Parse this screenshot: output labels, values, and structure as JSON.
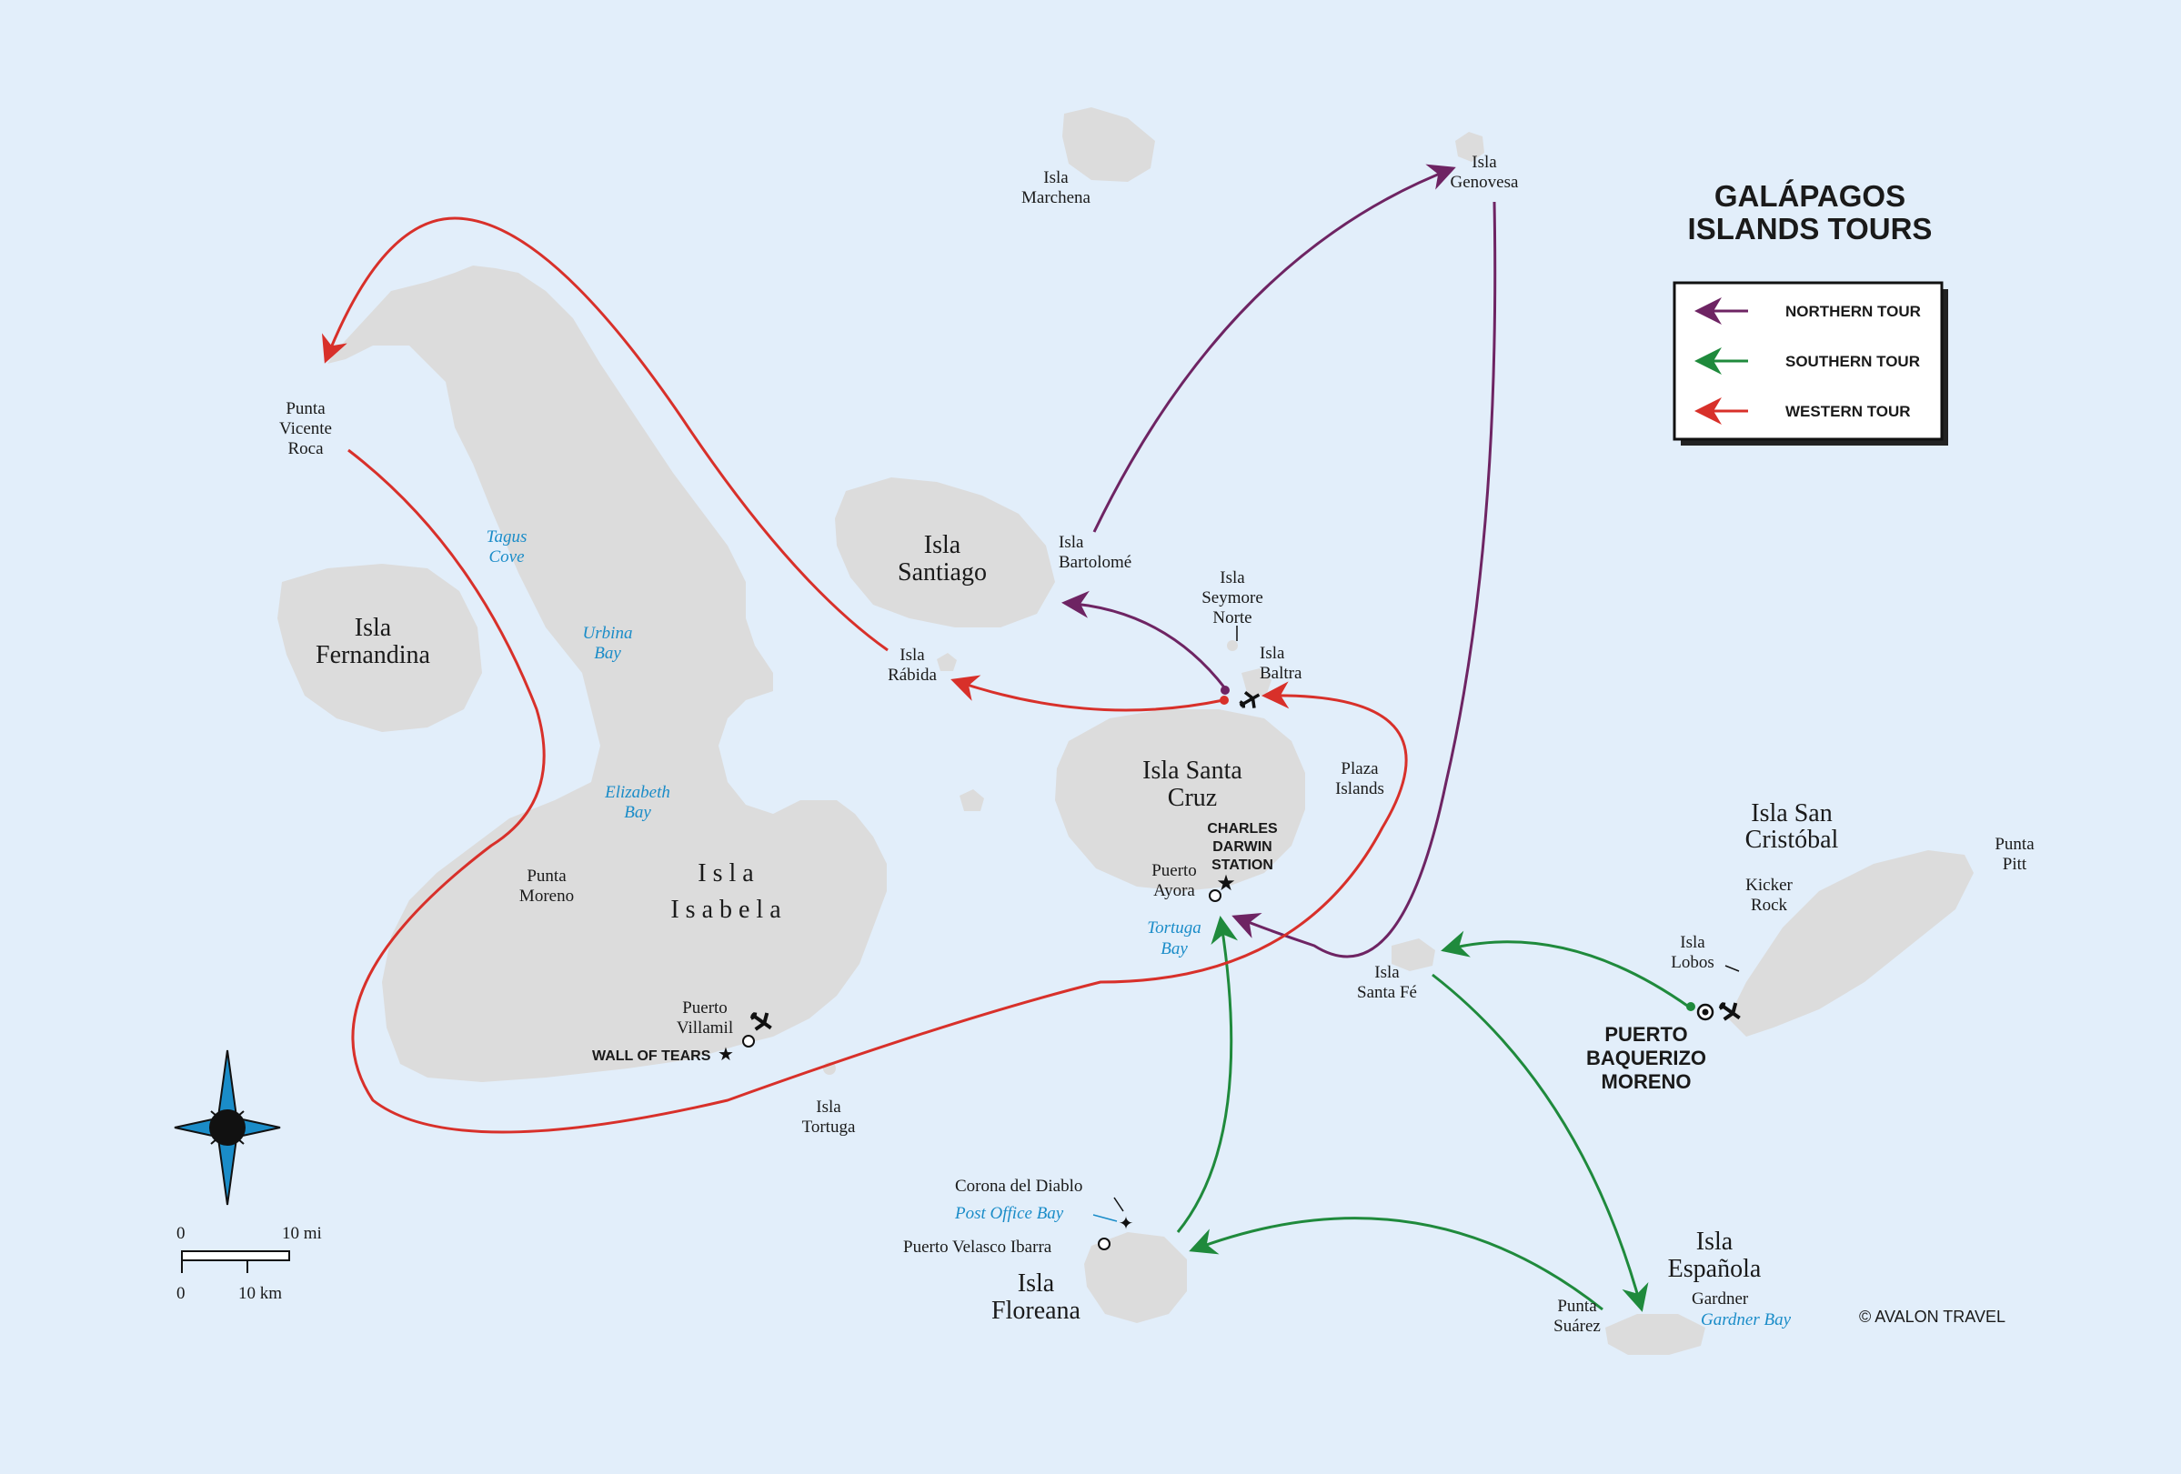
{
  "title": {
    "line1": "GALÁPAGOS",
    "line2": "ISLANDS TOURS"
  },
  "legend": [
    {
      "label": "NORTHERN TOUR",
      "color": "#6e2463"
    },
    {
      "label": "SOUTHERN TOUR",
      "color": "#1f8a3c"
    },
    {
      "label": "WESTERN TOUR",
      "color": "#d8302a"
    }
  ],
  "islands": {
    "marchena": [
      "Isla",
      "Marchena"
    ],
    "genovesa": [
      "Isla",
      "Genovesa"
    ],
    "santiago": [
      "Isla",
      "Santiago"
    ],
    "bartolome": [
      "Isla",
      "Bartolomé"
    ],
    "seymour": [
      "Isla",
      "Seymore",
      "Norte"
    ],
    "baltra": [
      "Isla",
      "Baltra"
    ],
    "rabida": [
      "Isla",
      "Rábida"
    ],
    "fernandina": [
      "Isla",
      "Fernandina"
    ],
    "isabela": [
      "I s l a",
      "I s a b e l a"
    ],
    "santa_cruz": [
      "Isla Santa",
      "Cruz"
    ],
    "plaza": [
      "Plaza",
      "Islands"
    ],
    "santa_fe": [
      "Isla",
      "Santa Fé"
    ],
    "san_cristobal": [
      "Isla San",
      "Cristóbal"
    ],
    "kicker": [
      "Kicker",
      "Rock"
    ],
    "lobos": [
      "Isla",
      "Lobos"
    ],
    "pitt": [
      "Punta",
      "Pitt"
    ],
    "tortuga": [
      "Isla",
      "Tortuga"
    ],
    "floreana": [
      "Isla",
      "Floreana"
    ],
    "espanola": [
      "Isla",
      "Española"
    ]
  },
  "places": {
    "vicente_roca": [
      "Punta",
      "Vicente",
      "Roca"
    ],
    "punta_moreno": [
      "Punta",
      "Moreno"
    ],
    "puerto_villamil": [
      "Puerto",
      "Villamil"
    ],
    "wall_of_tears": "WALL OF TEARS",
    "puerto_ayora": [
      "Puerto",
      "Ayora"
    ],
    "darwin_station": [
      "CHARLES",
      "DARWIN",
      "STATION"
    ],
    "baquerizo": [
      "PUERTO",
      "BAQUERIZO",
      "MORENO"
    ],
    "corona": "Corona del Diablo",
    "velasco": "Puerto Velasco Ibarra",
    "punta_suarez": [
      "Punta",
      "Suárez"
    ],
    "gardner": "Gardner"
  },
  "bays": {
    "tagus": [
      "Tagus",
      "Cove"
    ],
    "urbina": [
      "Urbina",
      "Bay"
    ],
    "elizabeth": [
      "Elizabeth",
      "Bay"
    ],
    "tortuga_bay": [
      "Tortuga",
      "Bay"
    ],
    "post_office": "Post Office Bay",
    "gardner_bay": "Gardner Bay"
  },
  "scale": {
    "mi_zero": "0",
    "mi_label": "10 mi",
    "km_zero": "0",
    "km_label": "10 km"
  },
  "credit": "© AVALON TRAVEL",
  "colors": {
    "ocean": "#e2eefa",
    "land": "#dcdcdc",
    "bay_text": "#1a8cc8",
    "compass": "#1a8cc8"
  },
  "icons": [
    "airport-icon",
    "star-icon",
    "town-circle-icon",
    "compass-rose-icon"
  ]
}
